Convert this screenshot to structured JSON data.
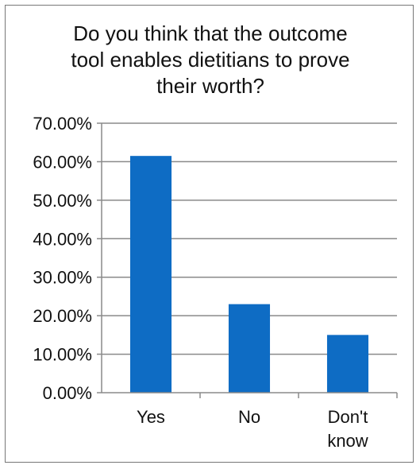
{
  "chart_data": {
    "type": "bar",
    "title": "Do you think that the outcome tool enables dietitians to prove their worth?",
    "categories": [
      "Yes",
      "No",
      "Don't know"
    ],
    "values": [
      61.5,
      23.0,
      15.0
    ],
    "ylim": [
      0,
      70
    ],
    "yticks": [
      "0.00%",
      "10.00%",
      "20.00%",
      "30.00%",
      "40.00%",
      "50.00%",
      "60.00%",
      "70.00%"
    ],
    "xlabel": "",
    "ylabel": "",
    "grid": true,
    "legend": false,
    "colors": {
      "bar": "#0e6cc4",
      "grid": "#8a8a8a",
      "axis": "#8a8a8a"
    }
  }
}
